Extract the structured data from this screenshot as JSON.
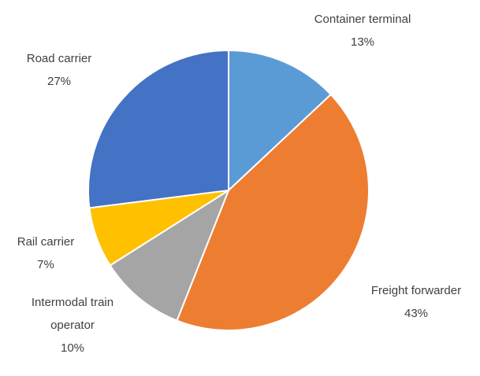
{
  "chart_data": {
    "type": "pie",
    "categories": [
      "Container terminal",
      "Freight forwarder",
      "Intermodal train operator",
      "Rail carrier",
      "Road carrier"
    ],
    "values": [
      13,
      43,
      10,
      7,
      27
    ],
    "value_labels": [
      "13%",
      "43%",
      "10%",
      "7%",
      "27%"
    ],
    "colors": [
      "#5b9bd5",
      "#ed7d31",
      "#a5a5a5",
      "#ffc000",
      "#4472c4"
    ]
  }
}
